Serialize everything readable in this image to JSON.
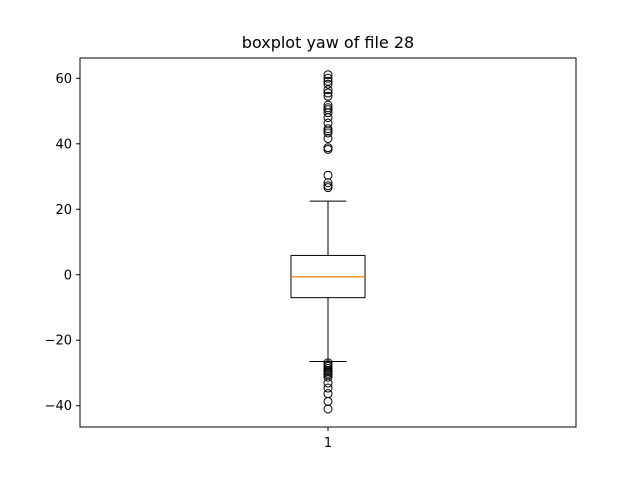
{
  "chart_data": {
    "type": "boxplot",
    "title": "boxplot yaw of file 28",
    "xlabel": "",
    "ylabel": "",
    "categories": [
      "1"
    ],
    "ylim": [
      -46.5,
      66.2
    ],
    "yticks": [
      -40,
      -20,
      0,
      20,
      40,
      60
    ],
    "ytick_labels": [
      "−40",
      "−20",
      "0",
      "20",
      "40",
      "60"
    ],
    "box": {
      "whisker_low": -26.5,
      "q1": -7.0,
      "median": -0.6,
      "q3": 5.9,
      "whisker_high": 22.5
    },
    "outliers": [
      61.1,
      60.0,
      59.1,
      58.2,
      56.5,
      55.5,
      54.5,
      51.8,
      51.0,
      50.4,
      49.5,
      48.0,
      46.3,
      44.6,
      43.9,
      43.3,
      41.6,
      38.8,
      38.3,
      30.4,
      28.1,
      27.2,
      26.6,
      -26.9,
      -27.5,
      -28.0,
      -28.6,
      -29.2,
      -29.6,
      -30.1,
      -30.6,
      -31.3,
      -33.1,
      -34.6,
      -36.3,
      -38.7,
      -41.0
    ],
    "colors": {
      "box": "#000000",
      "median": "#ff7f0e",
      "outlier": "#000000"
    },
    "grid": false,
    "legend": "none"
  }
}
